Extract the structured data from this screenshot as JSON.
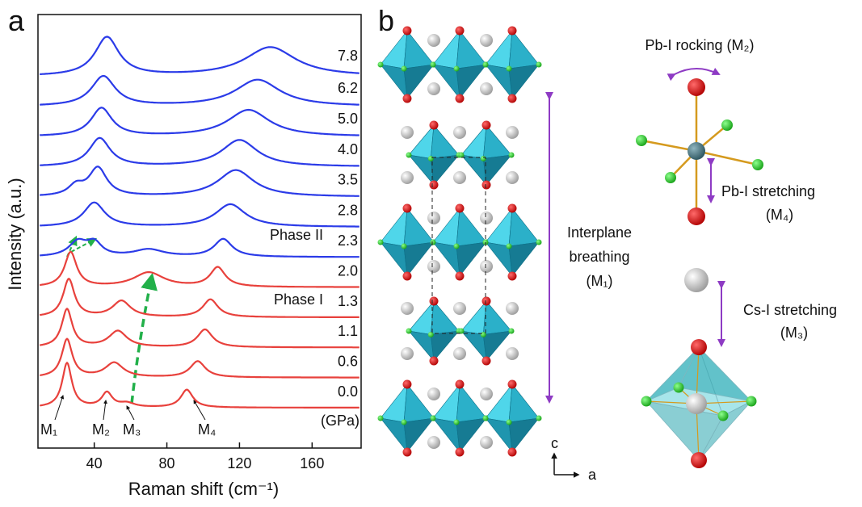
{
  "chart_data": {
    "type": "line",
    "panel_label": "a",
    "x_label": "Raman shift (cm⁻¹)",
    "y_label": "Intensity (a.u.)",
    "xlim": [
      9,
      187
    ],
    "xticks": [
      40,
      80,
      120,
      160
    ],
    "unit_label": "(GPa)",
    "annotations": {
      "phase_1": "Phase I",
      "phase_2": "Phase II",
      "modes": [
        "M₁",
        "M₂",
        "M₃",
        "M₄"
      ]
    },
    "series": [
      {
        "name": "0.0",
        "color": "#e8413c",
        "peaks": [
          {
            "center": 25,
            "height": 55,
            "width": 3.2
          },
          {
            "center": 47,
            "height": 18,
            "width": 3.5
          },
          {
            "center": 58,
            "height": 5,
            "width": 5
          },
          {
            "center": 91,
            "height": 22,
            "width": 4
          }
        ]
      },
      {
        "name": "0.6",
        "color": "#e8413c",
        "peaks": [
          {
            "center": 25,
            "height": 47,
            "width": 3.5
          },
          {
            "center": 51,
            "height": 18,
            "width": 6
          },
          {
            "center": 97,
            "height": 20,
            "width": 5
          }
        ]
      },
      {
        "name": "1.1",
        "color": "#e8413c",
        "peaks": [
          {
            "center": 25,
            "height": 47,
            "width": 3.5
          },
          {
            "center": 53,
            "height": 20,
            "width": 6
          },
          {
            "center": 101,
            "height": 22,
            "width": 5
          }
        ]
      },
      {
        "name": "1.3",
        "color": "#e8413c",
        "peaks": [
          {
            "center": 26,
            "height": 47,
            "width": 3.8
          },
          {
            "center": 55,
            "height": 20,
            "width": 6
          },
          {
            "center": 104,
            "height": 22,
            "width": 5
          }
        ]
      },
      {
        "name": "2.0",
        "color": "#e8413c",
        "peaks": [
          {
            "center": 27,
            "height": 43,
            "width": 4
          },
          {
            "center": 70,
            "height": 18,
            "width": 10
          },
          {
            "center": 108,
            "height": 24,
            "width": 5
          }
        ]
      },
      {
        "name": "2.3",
        "color": "#2b3be8",
        "peaks": [
          {
            "center": 31,
            "height": 18,
            "width": 6
          },
          {
            "center": 40,
            "height": 16,
            "width": 5
          },
          {
            "center": 70,
            "height": 9,
            "width": 10
          },
          {
            "center": 111,
            "height": 22,
            "width": 6
          }
        ]
      },
      {
        "name": "2.8",
        "color": "#2b3be8",
        "peaks": [
          {
            "center": 40,
            "height": 30,
            "width": 7
          },
          {
            "center": 115,
            "height": 28,
            "width": 10
          }
        ]
      },
      {
        "name": "3.5",
        "color": "#2b3be8",
        "peaks": [
          {
            "center": 30,
            "height": 12,
            "width": 5
          },
          {
            "center": 42,
            "height": 35,
            "width": 6
          },
          {
            "center": 118,
            "height": 33,
            "width": 12
          }
        ]
      },
      {
        "name": "4.0",
        "color": "#2b3be8",
        "peaks": [
          {
            "center": 43,
            "height": 35,
            "width": 7
          },
          {
            "center": 120,
            "height": 33,
            "width": 12
          }
        ]
      },
      {
        "name": "5.0",
        "color": "#2b3be8",
        "peaks": [
          {
            "center": 44,
            "height": 35,
            "width": 7
          },
          {
            "center": 125,
            "height": 33,
            "width": 14
          }
        ]
      },
      {
        "name": "6.2",
        "color": "#2b3be8",
        "peaks": [
          {
            "center": 45,
            "height": 37,
            "width": 8
          },
          {
            "center": 130,
            "height": 33,
            "width": 15
          }
        ]
      },
      {
        "name": "7.8",
        "color": "#2b3be8",
        "peaks": [
          {
            "center": 47,
            "height": 48,
            "width": 8
          },
          {
            "center": 137,
            "height": 36,
            "width": 17
          }
        ]
      }
    ]
  },
  "panel_b": {
    "label": "b",
    "rocking": "Pb-I rocking (M₂)",
    "pb_stretch": [
      "Pb-I stretching",
      "(M₄)"
    ],
    "breathing": [
      "Interplane",
      "breathing",
      "(M₁)"
    ],
    "cs_stretch": [
      "Cs-I stretching",
      "(M₃)"
    ],
    "axes": [
      "c",
      "a"
    ]
  }
}
